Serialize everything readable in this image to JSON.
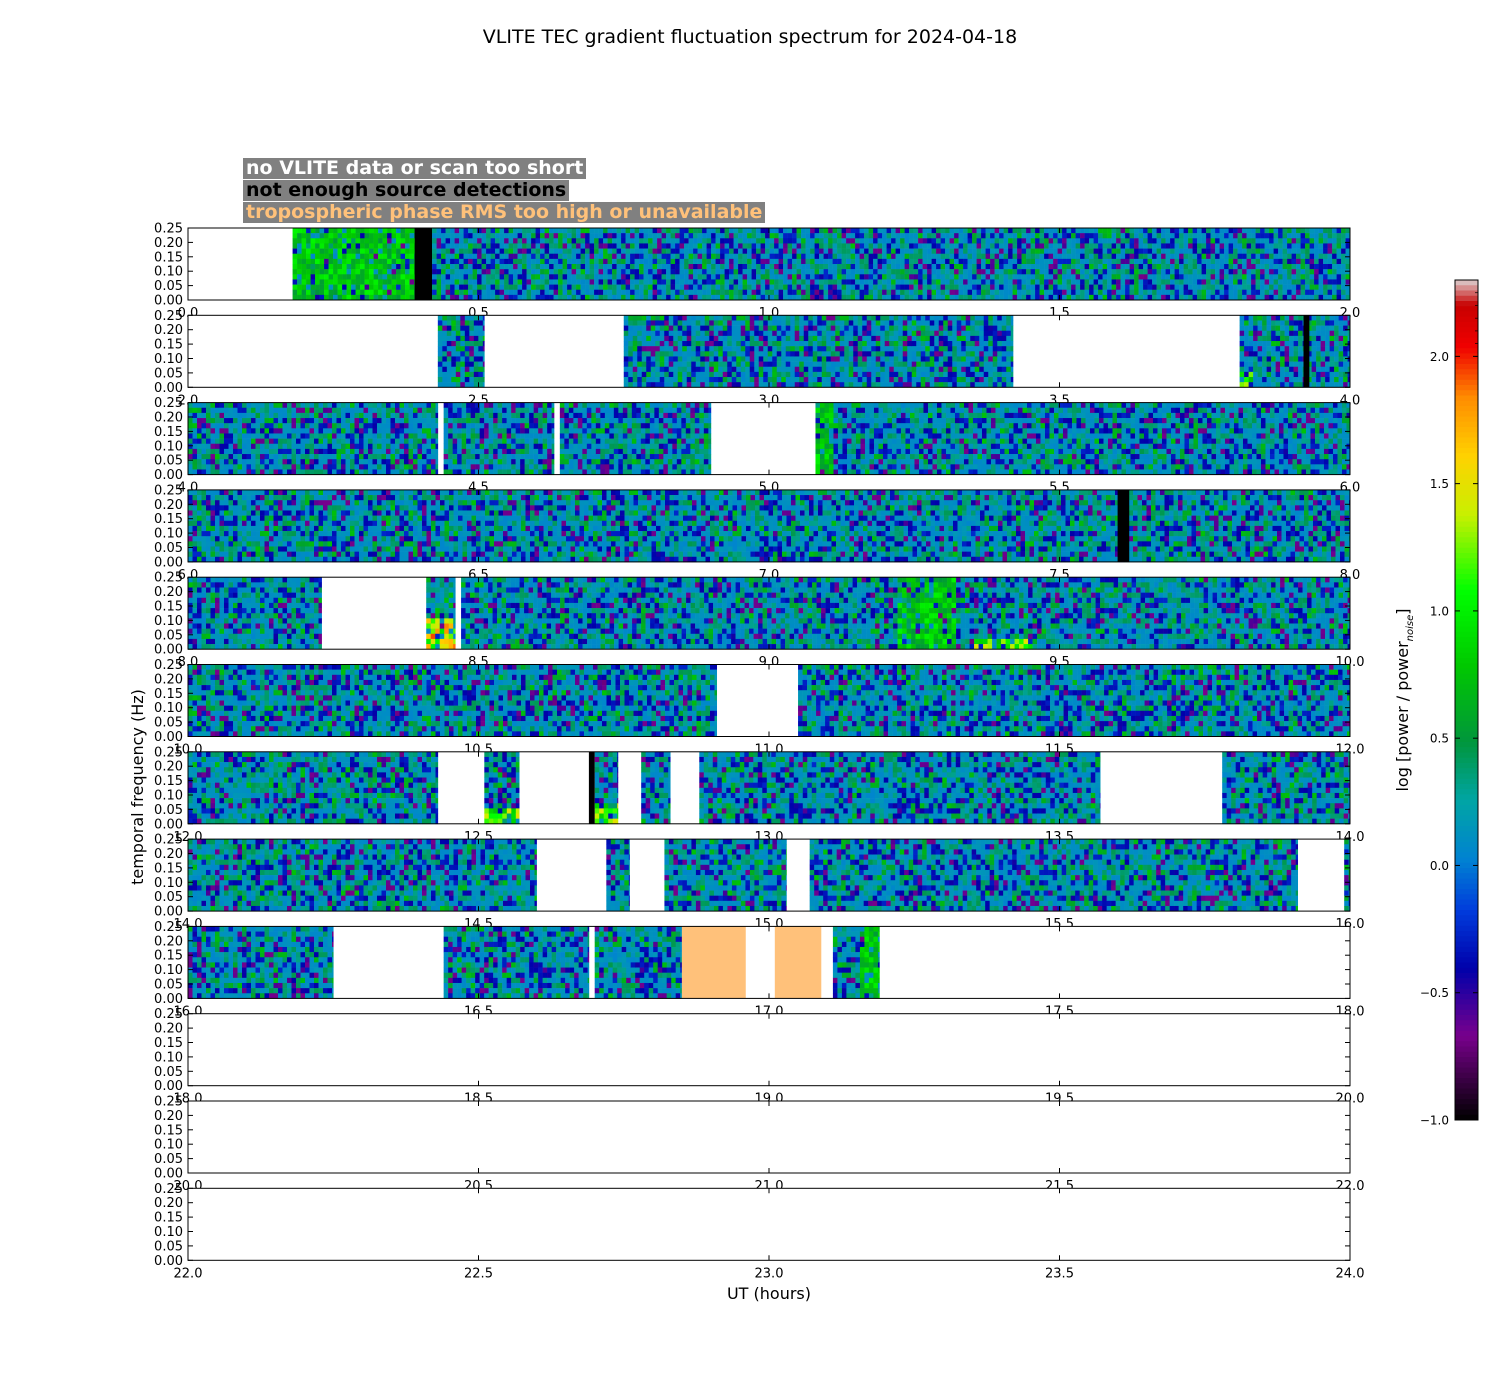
{
  "chart_data": {
    "type": "heatmap",
    "title": "VLITE TEC gradient fluctuation spectrum for 2024-04-18",
    "xlabel": "UT (hours)",
    "ylabel": "temporal frequency (Hz)",
    "colorbar_label": "log [power / power",
    "colorbar_label_sub": "noise",
    "colorbar_label_end": "]",
    "colorbar_range": [
      -1.0,
      2.3
    ],
    "colorbar_ticks": [
      "2.0",
      "1.5",
      "1.0",
      "0.5",
      "0.0",
      "−0.5",
      "−1.0"
    ],
    "colorbar_tick_values": [
      2.0,
      1.5,
      1.0,
      0.5,
      0.0,
      -0.5,
      -1.0
    ],
    "ylim": [
      0,
      0.25
    ],
    "y_ticks": [
      "0.25",
      "0.20",
      "0.15",
      "0.10",
      "0.05",
      "0.00"
    ],
    "y_tick_values": [
      0.25,
      0.2,
      0.15,
      0.1,
      0.05,
      0.0
    ],
    "legend": [
      {
        "label": "no VLITE data or scan too short",
        "color": "#ffffff"
      },
      {
        "label": "not enough source detections",
        "color": "#000000"
      },
      {
        "label": "tropospheric phase RMS too high or unavailable",
        "color": "#ffc17a"
      }
    ],
    "panels": [
      {
        "x_ticks": [
          "0.0",
          "0.5",
          "1.0",
          "1.5",
          "2.0"
        ],
        "xlim": [
          0,
          2
        ],
        "data_segments": [
          [
            0.18,
            2.0
          ]
        ],
        "no_detection": [
          [
            0.39,
            0.42
          ]
        ],
        "tropo": [],
        "hot_spots": [
          {
            "x": [
              0.18,
              0.42
            ],
            "y": [
              0,
              0.25
            ],
            "level": 0.9
          }
        ]
      },
      {
        "x_ticks": [
          "2.0",
          "2.5",
          "3.0",
          "3.5",
          "4.0"
        ],
        "xlim": [
          2,
          4
        ],
        "data_segments": [
          [
            2.43,
            2.51
          ],
          [
            2.75,
            3.42
          ],
          [
            3.81,
            4.0
          ]
        ],
        "no_detection": [
          [
            3.92,
            3.93
          ]
        ],
        "tropo": [],
        "hot_spots": [
          {
            "x": [
              3.81,
              3.83
            ],
            "y": [
              0,
              0.06
            ],
            "level": 1.2
          }
        ]
      },
      {
        "x_ticks": [
          "4.0",
          "4.5",
          "5.0",
          "5.5",
          "6.0"
        ],
        "xlim": [
          4,
          6
        ],
        "data_segments": [
          [
            4.0,
            4.43
          ],
          [
            4.44,
            4.63
          ],
          [
            4.64,
            4.9
          ],
          [
            5.08,
            6.0
          ]
        ],
        "no_detection": [],
        "tropo": [],
        "hot_spots": [
          {
            "x": [
              5.08,
              5.11
            ],
            "y": [
              0,
              0.25
            ],
            "level": 0.9
          }
        ]
      },
      {
        "x_ticks": [
          "6.0",
          "6.5",
          "7.0",
          "7.5",
          "8.0"
        ],
        "xlim": [
          6,
          8
        ],
        "data_segments": [
          [
            6.0,
            8.0
          ]
        ],
        "no_detection": [
          [
            7.6,
            7.62
          ]
        ],
        "tropo": [],
        "hot_spots": []
      },
      {
        "x_ticks": [
          "8.0",
          "8.5",
          "9.0",
          "9.5",
          "10.0"
        ],
        "xlim": [
          8,
          10
        ],
        "data_segments": [
          [
            8.0,
            8.23
          ],
          [
            8.41,
            8.46
          ],
          [
            8.47,
            10.0
          ]
        ],
        "no_detection": [],
        "tropo": [],
        "hot_spots": [
          {
            "x": [
              8.41,
              8.46
            ],
            "y": [
              0,
              0.1
            ],
            "level": 1.7
          },
          {
            "x": [
              9.22,
              9.32
            ],
            "y": [
              0,
              0.25
            ],
            "level": 0.9
          },
          {
            "x": [
              9.35,
              9.45
            ],
            "y": [
              0,
              0.04
            ],
            "level": 1.3
          }
        ]
      },
      {
        "x_ticks": [
          "10.0",
          "10.5",
          "11.0",
          "11.5",
          "12.0"
        ],
        "xlim": [
          10,
          12
        ],
        "data_segments": [
          [
            10.0,
            10.91
          ],
          [
            11.05,
            12.0
          ]
        ],
        "no_detection": [],
        "tropo": [],
        "hot_spots": []
      },
      {
        "x_ticks": [
          "12.0",
          "12.5",
          "13.0",
          "13.5",
          "14.0"
        ],
        "xlim": [
          12,
          14
        ],
        "data_segments": [
          [
            12.0,
            12.43
          ],
          [
            12.51,
            12.57
          ],
          [
            12.7,
            12.74
          ],
          [
            12.78,
            12.83
          ],
          [
            12.88,
            13.57
          ],
          [
            13.78,
            14.0
          ]
        ],
        "no_detection": [
          [
            12.69,
            12.7
          ]
        ],
        "tropo": [],
        "hot_spots": [
          {
            "x": [
              12.51,
              12.57
            ],
            "y": [
              0,
              0.05
            ],
            "level": 1.3
          },
          {
            "x": [
              12.7,
              12.74
            ],
            "y": [
              0,
              0.07
            ],
            "level": 1.4
          }
        ]
      },
      {
        "x_ticks": [
          "14.0",
          "14.5",
          "15.0",
          "15.5",
          "16.0"
        ],
        "xlim": [
          14,
          16
        ],
        "data_segments": [
          [
            14.0,
            14.6
          ],
          [
            14.72,
            14.76
          ],
          [
            14.82,
            15.03
          ],
          [
            15.07,
            15.91
          ],
          [
            15.99,
            16.0
          ]
        ],
        "no_detection": [],
        "tropo": [],
        "hot_spots": []
      },
      {
        "x_ticks": [
          "16.0",
          "16.5",
          "17.0",
          "17.5",
          "18.0"
        ],
        "xlim": [
          16,
          18
        ],
        "data_segments": [
          [
            16.0,
            16.25
          ],
          [
            16.44,
            16.69
          ],
          [
            16.7,
            16.85
          ],
          [
            17.11,
            17.19
          ]
        ],
        "no_detection": [],
        "tropo": [
          [
            16.85,
            16.96
          ],
          [
            17.01,
            17.09
          ]
        ],
        "hot_spots": [
          {
            "x": [
              17.16,
              17.19
            ],
            "y": [
              0,
              0.25
            ],
            "level": 0.9
          }
        ]
      },
      {
        "x_ticks": [
          "18.0",
          "18.5",
          "19.0",
          "19.5",
          "20.0"
        ],
        "xlim": [
          18,
          20
        ],
        "data_segments": [],
        "no_detection": [],
        "tropo": [],
        "hot_spots": []
      },
      {
        "x_ticks": [
          "20.0",
          "20.5",
          "21.0",
          "21.5",
          "22.0"
        ],
        "xlim": [
          20,
          22
        ],
        "data_segments": [],
        "no_detection": [],
        "tropo": [],
        "hot_spots": []
      },
      {
        "x_ticks": [
          "22.0",
          "22.5",
          "23.0",
          "23.5",
          "24.0"
        ],
        "xlim": [
          22,
          24
        ],
        "data_segments": [],
        "no_detection": [],
        "tropo": [],
        "hot_spots": []
      }
    ]
  }
}
